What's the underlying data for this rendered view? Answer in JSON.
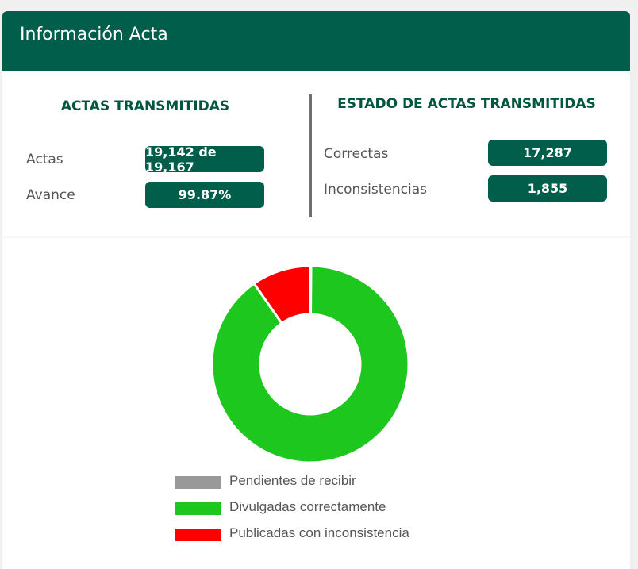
{
  "card": {
    "title": "Información Acta"
  },
  "actas_transmitidas": {
    "title": "ACTAS TRANSMITIDAS",
    "rows": [
      {
        "label": "Actas",
        "value": "19,142 de 19,167"
      },
      {
        "label": "Avance",
        "value": "99.87%"
      }
    ]
  },
  "estado_actas": {
    "title": "ESTADO DE ACTAS TRANSMITIDAS",
    "rows": [
      {
        "label": "Correctas",
        "value": "17,287"
      },
      {
        "label": "Inconsistencias",
        "value": "1,855"
      }
    ]
  },
  "chart_data": {
    "type": "pie",
    "variant": "donut",
    "legend_position": "bottom",
    "series": [
      {
        "name": "Pendientes de recibir",
        "value": 25,
        "color": "#999999"
      },
      {
        "name": "Divulgadas correctamente",
        "value": 17287,
        "color": "#1ec71e"
      },
      {
        "name": "Publicadas con inconsistencia",
        "value": 1855,
        "color": "#ff0000"
      }
    ]
  },
  "colors": {
    "header_bg": "#005e4a",
    "pill_bg": "#005e4a",
    "section_title": "#00563f"
  }
}
